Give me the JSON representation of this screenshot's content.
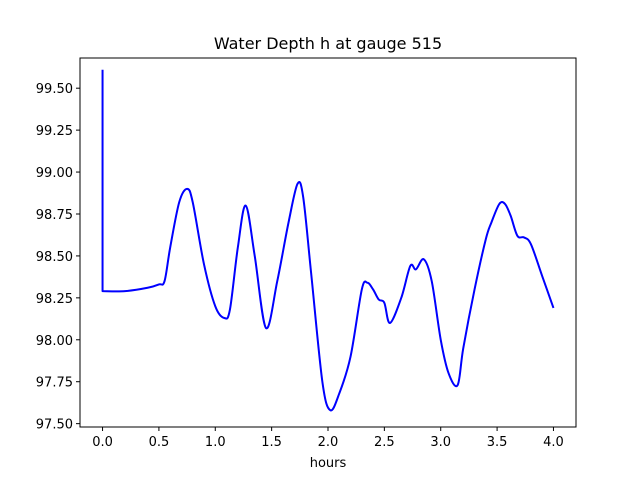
{
  "chart_data": {
    "type": "line",
    "title": "Water Depth h at gauge 515",
    "xlabel": "hours",
    "ylabel": "",
    "xlim": [
      -0.2,
      4.2
    ],
    "ylim": [
      97.48,
      99.68
    ],
    "xticks": [
      0.0,
      0.5,
      1.0,
      1.5,
      2.0,
      2.5,
      3.0,
      3.5,
      4.0
    ],
    "xtick_labels": [
      "0.0",
      "0.5",
      "1.0",
      "1.5",
      "2.0",
      "2.5",
      "3.0",
      "3.5",
      "4.0"
    ],
    "yticks": [
      97.5,
      97.75,
      98.0,
      98.25,
      98.5,
      98.75,
      99.0,
      99.25,
      99.5
    ],
    "ytick_labels": [
      "97.50",
      "97.75",
      "98.00",
      "98.25",
      "98.50",
      "98.75",
      "99.00",
      "99.25",
      "99.50"
    ],
    "grid": false,
    "series": [
      {
        "color": "#0000ff",
        "x": [
          0.0,
          0.0,
          0.2,
          0.4,
          0.5,
          0.55,
          0.6,
          0.68,
          0.75,
          0.8,
          0.9,
          1.0,
          1.08,
          1.13,
          1.2,
          1.27,
          1.35,
          1.45,
          1.55,
          1.65,
          1.73,
          1.78,
          1.85,
          1.95,
          2.02,
          2.1,
          2.2,
          2.3,
          2.35,
          2.4,
          2.45,
          2.5,
          2.55,
          2.65,
          2.73,
          2.78,
          2.85,
          2.92,
          3.0,
          3.07,
          3.15,
          3.2,
          3.3,
          3.4,
          3.45,
          3.52,
          3.57,
          3.62,
          3.68,
          3.74,
          3.8,
          3.9,
          4.0
        ],
        "y": [
          99.61,
          98.29,
          98.29,
          98.31,
          98.33,
          98.35,
          98.55,
          98.82,
          98.9,
          98.82,
          98.45,
          98.2,
          98.13,
          98.18,
          98.55,
          98.8,
          98.5,
          98.07,
          98.35,
          98.7,
          98.93,
          98.85,
          98.4,
          97.75,
          97.58,
          97.68,
          97.9,
          98.3,
          98.34,
          98.3,
          98.24,
          98.22,
          98.1,
          98.25,
          98.44,
          98.42,
          98.48,
          98.35,
          98.0,
          97.8,
          97.73,
          97.95,
          98.3,
          98.6,
          98.7,
          98.81,
          98.81,
          98.74,
          98.62,
          98.61,
          98.57,
          98.38,
          98.19
        ]
      }
    ]
  }
}
